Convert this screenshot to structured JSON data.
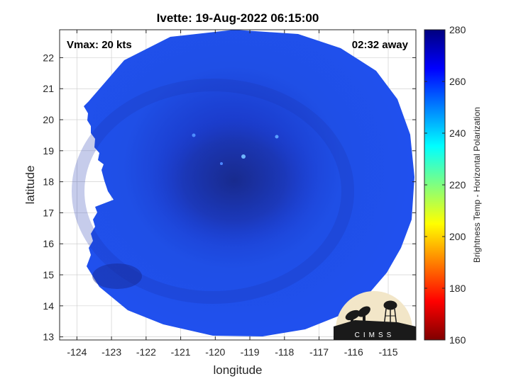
{
  "chart_data": {
    "type": "heatmap",
    "title": "Ivette: 19-Aug-2022 06:15:00",
    "xlabel": "longitude",
    "ylabel": "latitude",
    "xlim": [
      -124.5,
      -114.2
    ],
    "ylim": [
      12.9,
      22.9
    ],
    "x_ticks": [
      -124,
      -123,
      -122,
      -121,
      -120,
      -119,
      -118,
      -117,
      -116,
      -115
    ],
    "y_ticks": [
      13,
      14,
      15,
      16,
      17,
      18,
      19,
      20,
      21,
      22
    ],
    "grid": true,
    "annotations": {
      "vmax": "Vmax: 20 kts",
      "time_away": "02:32 away"
    },
    "colorbar": {
      "label": "Brightness Temp - Horizontal Polarization",
      "range": [
        160,
        280
      ],
      "ticks": [
        160,
        180,
        200,
        220,
        240,
        260,
        280
      ],
      "colormap": [
        "#7f0000",
        "#ff0000",
        "#ff8000",
        "#ffff00",
        "#80ff80",
        "#00ffff",
        "#0080ff",
        "#0000ff",
        "#00007f"
      ]
    },
    "swath": {
      "center_lon": -119.7,
      "center_lat": 18.3,
      "storm_center_lon": -119.6,
      "storm_center_lat": 18.3,
      "min_tb": 258,
      "typical_tb": 265,
      "edge_tb": 266
    },
    "logo_text": "CIMSS"
  }
}
